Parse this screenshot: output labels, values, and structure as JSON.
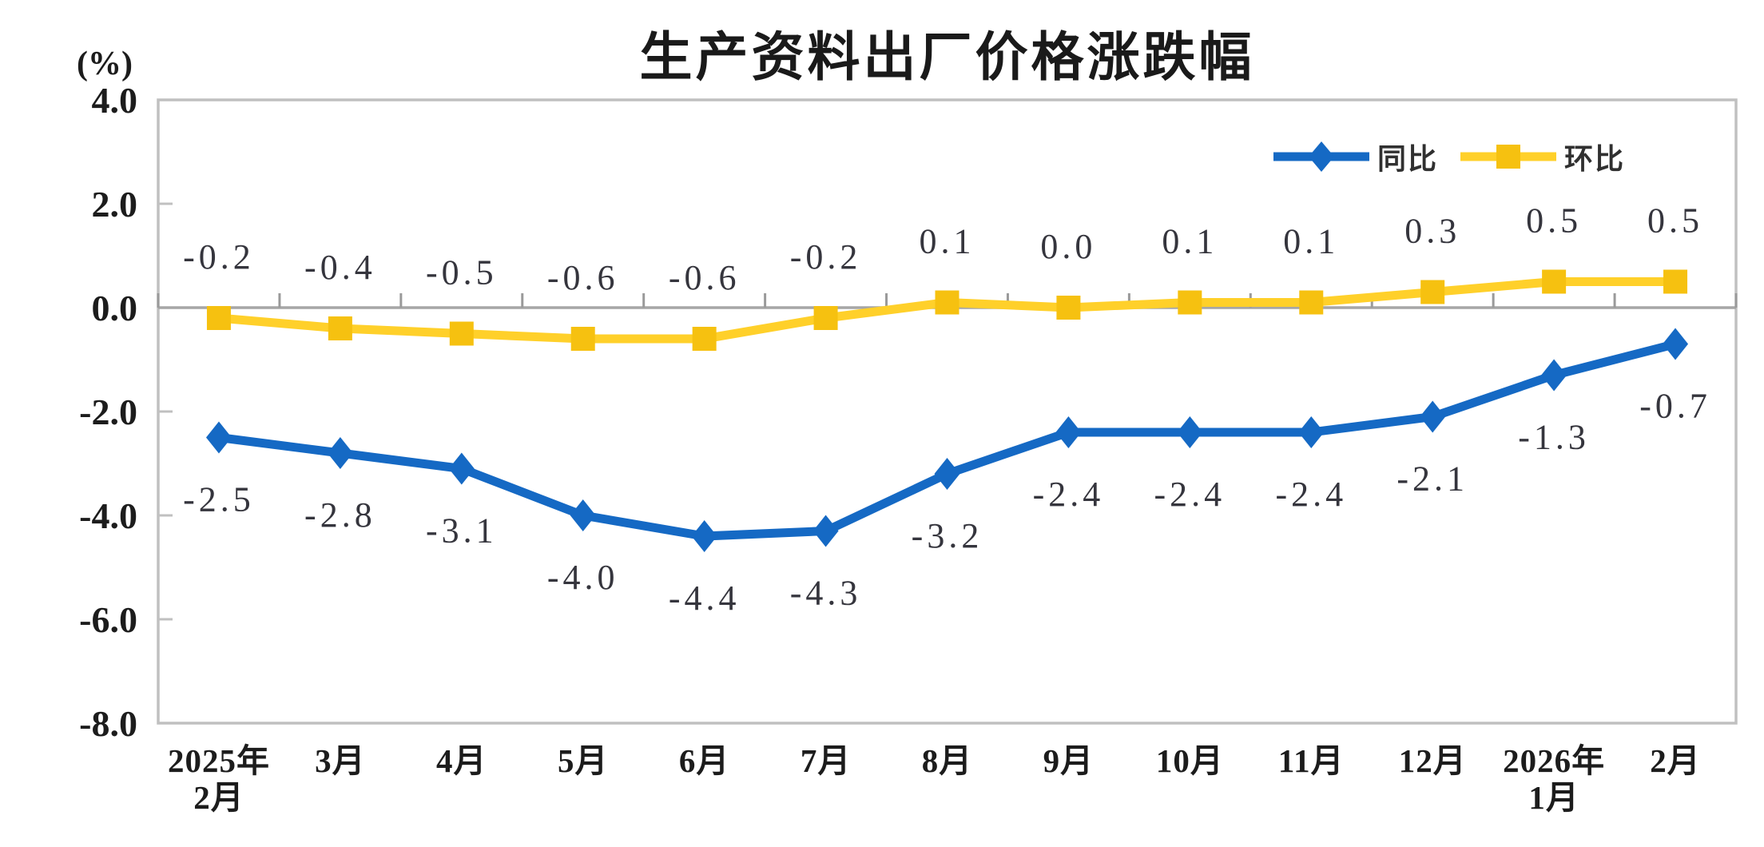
{
  "title": "生产资料出厂价格涨跌幅",
  "y_axis_unit": "(%)",
  "legend": [
    {
      "label": "同比"
    },
    {
      "label": "环比"
    }
  ],
  "chart_data": {
    "type": "line",
    "title": "生产资料出厂价格涨跌幅",
    "ylabel": "(%)",
    "categories": [
      "2025年\n2月",
      "3月",
      "4月",
      "5月",
      "6月",
      "7月",
      "8月",
      "9月",
      "10月",
      "11月",
      "12月",
      "2026年\n1月",
      "2月"
    ],
    "series": [
      {
        "name": "同比",
        "values": [
          -2.5,
          -2.8,
          -3.1,
          -4.0,
          -4.4,
          -4.3,
          -3.2,
          -2.4,
          -2.4,
          -2.4,
          -2.1,
          -1.3,
          -0.7
        ],
        "labels": [
          "-2.5",
          "-2.8",
          "-3.1",
          "-4.0",
          "-4.4",
          "-4.3",
          "-3.2",
          "-2.4",
          "-2.4",
          "-2.4",
          "-2.1",
          "-1.3",
          "-0.7"
        ],
        "line_color": "#1569C4",
        "marker_color": "#1569C4",
        "marker": "diamond",
        "label_side": "below"
      },
      {
        "name": "环比",
        "values": [
          -0.2,
          -0.4,
          -0.5,
          -0.6,
          -0.6,
          -0.2,
          0.1,
          0.0,
          0.1,
          0.1,
          0.3,
          0.5,
          0.5
        ],
        "labels": [
          "-0.2",
          "-0.4",
          "-0.5",
          "-0.6",
          "-0.6",
          "-0.2",
          "0.1",
          "0.0",
          "0.1",
          "0.1",
          "0.3",
          "0.5",
          "0.5"
        ],
        "line_color": "#FFD02A",
        "marker_color": "#F6C110",
        "marker": "square",
        "label_side": "above"
      }
    ],
    "ylim": [
      -8,
      4
    ],
    "y_ticks": [
      "4.0",
      "2.0",
      "0.0",
      "-2.0",
      "-4.0",
      "-6.0",
      "-8.0"
    ],
    "grid": false,
    "legend_position": "top-right",
    "colors": {
      "border": "#c0c0c0",
      "axis": "#a6a6a6",
      "tick": "#9a9a9a"
    }
  }
}
